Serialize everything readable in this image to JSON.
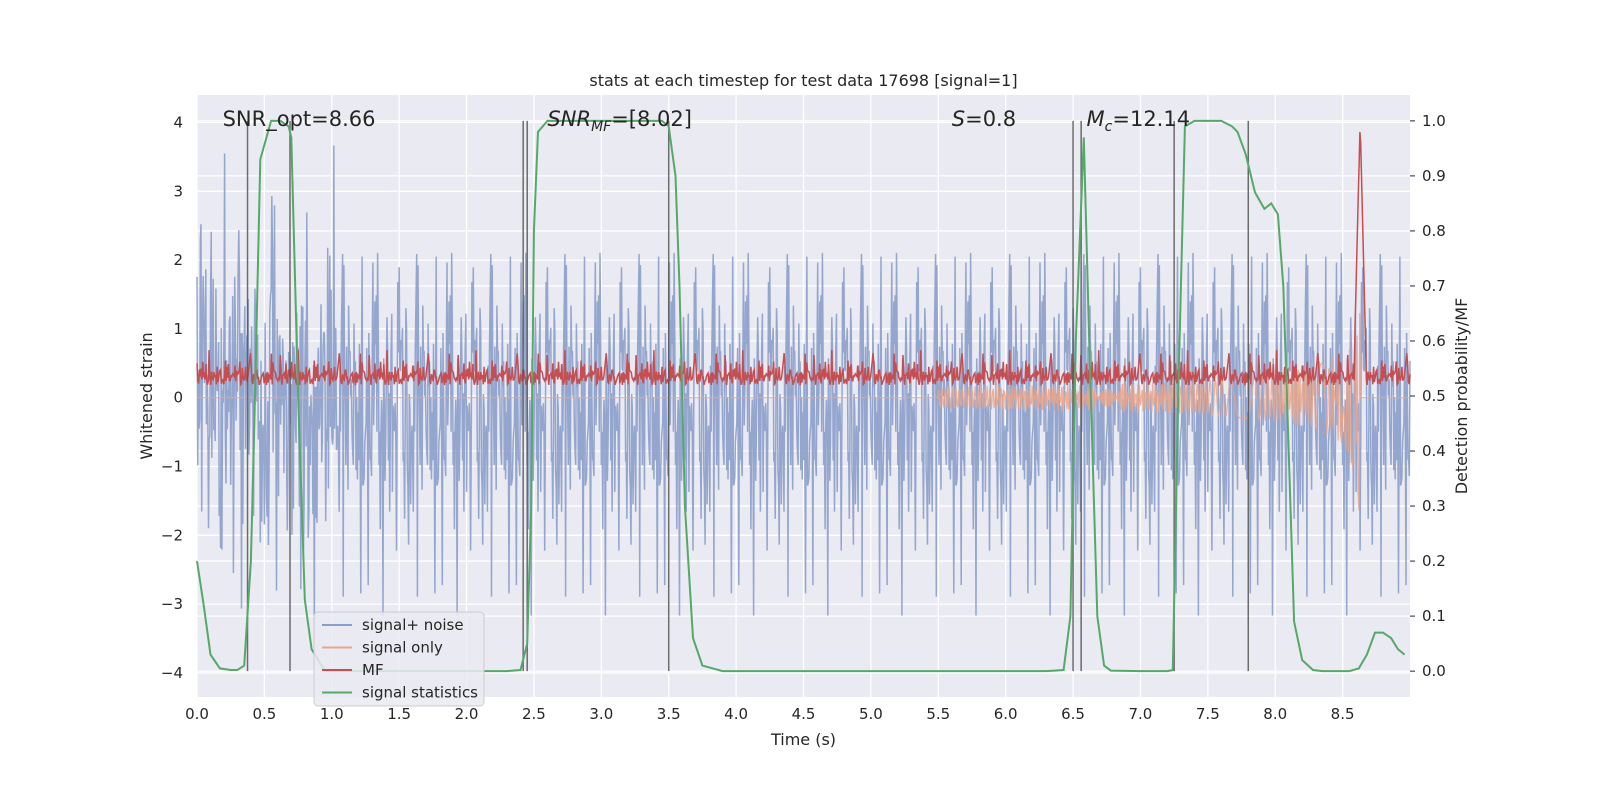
{
  "chart_data": {
    "type": "line",
    "title": "stats at each timestep for test data 17698 [signal=1]",
    "xlabel": "Time (s)",
    "ylabel": "Whitened strain",
    "y2label": "Detection probability/MF",
    "xlim": [
      0.0,
      9.0
    ],
    "ylim": [
      -4.35,
      4.4
    ],
    "y2lim": [
      -0.047,
      1.047
    ],
    "xticks": [
      "0.0",
      "0.5",
      "1.0",
      "1.5",
      "2.0",
      "2.5",
      "3.0",
      "3.5",
      "4.0",
      "4.5",
      "5.0",
      "5.5",
      "6.0",
      "6.5",
      "7.0",
      "7.5",
      "8.0",
      "8.5"
    ],
    "yticks": [
      "−4",
      "−3",
      "−2",
      "−1",
      "0",
      "1",
      "2",
      "3",
      "4"
    ],
    "y2ticks": [
      "0.0",
      "0.1",
      "0.2",
      "0.3",
      "0.4",
      "0.5",
      "0.6",
      "0.7",
      "0.8",
      "0.9",
      "1.0"
    ],
    "grid": true,
    "legend_position": "lower-left",
    "annotations": [
      {
        "label": "SNR_opt=8.66",
        "x": 0.19,
        "y": 4.05
      },
      {
        "label_main": "SNR",
        "label_sub": "MF",
        "label_rest": "=[8.02]",
        "x": 2.6,
        "y": 4.05
      },
      {
        "label_main": "S",
        "label_rest": "=0.8",
        "x": 5.6,
        "y": 4.05
      },
      {
        "label_main": "M",
        "label_sub": "c",
        "label_rest": "=12.14",
        "x": 6.6,
        "y": 4.05
      }
    ],
    "vertical_lines": [
      0.375,
      0.69,
      2.42,
      2.45,
      3.5,
      6.5,
      6.56,
      7.25,
      7.8
    ],
    "series": [
      {
        "name": "signal+ noise",
        "color": "#8c9fca",
        "description": "whitened strain with noise, amplitude roughly between -4 and 4.2 over 0–9 s"
      },
      {
        "name": "signal only",
        "color": "#e8a58c",
        "chirp_start": 5.5,
        "chirp_peak": 8.63,
        "chirp_peak_amplitude": 2.0
      },
      {
        "name": "MF",
        "color": "#c44e52",
        "baseline_range": [
          0.02,
          0.35
        ],
        "peak_time": 8.63,
        "peak_value": 1.0
      },
      {
        "name": "signal statistics",
        "color": "#55a868",
        "x": [
          0.0,
          0.05,
          0.1,
          0.17,
          0.25,
          0.3,
          0.35,
          0.4,
          0.43,
          0.47,
          0.55,
          0.62,
          0.68,
          0.7,
          0.75,
          0.8,
          0.85,
          0.95,
          1.2,
          1.5,
          1.8,
          2.1,
          2.3,
          2.4,
          2.45,
          2.48,
          2.5,
          2.53,
          2.6,
          2.8,
          3.0,
          3.2,
          3.45,
          3.5,
          3.55,
          3.58,
          3.62,
          3.68,
          3.75,
          3.9,
          4.5,
          5.0,
          5.5,
          6.0,
          6.3,
          6.43,
          6.48,
          6.52,
          6.58,
          6.62,
          6.68,
          6.73,
          6.78,
          7.0,
          7.2,
          7.24,
          7.28,
          7.33,
          7.4,
          7.5,
          7.6,
          7.68,
          7.72,
          7.78,
          7.85,
          7.92,
          7.97,
          8.02,
          8.06,
          8.1,
          8.14,
          8.2,
          8.28,
          8.35,
          8.45,
          8.55,
          8.62,
          8.68,
          8.74,
          8.8,
          8.86,
          8.91,
          8.96
        ],
        "y": [
          0.2,
          0.12,
          0.03,
          0.005,
          0.002,
          0.002,
          0.01,
          0.2,
          0.5,
          0.93,
          1.0,
          1.0,
          0.99,
          0.97,
          0.5,
          0.13,
          0.04,
          0.0,
          0.0,
          0.0,
          0.0,
          0.0,
          0.0,
          0.002,
          0.05,
          0.3,
          0.8,
          0.98,
          1.0,
          1.0,
          1.0,
          1.0,
          1.0,
          0.99,
          0.9,
          0.7,
          0.3,
          0.06,
          0.01,
          0.0,
          0.0,
          0.0,
          0.0,
          0.0,
          0.0,
          0.002,
          0.1,
          0.6,
          0.97,
          0.6,
          0.1,
          0.01,
          0.001,
          0.0,
          0.0,
          0.002,
          0.5,
          0.99,
          1.0,
          1.0,
          1.0,
          0.99,
          0.98,
          0.94,
          0.87,
          0.84,
          0.85,
          0.83,
          0.7,
          0.4,
          0.09,
          0.02,
          0.002,
          0.0,
          0.0,
          0.0,
          0.005,
          0.03,
          0.07,
          0.07,
          0.06,
          0.04,
          0.03
        ]
      }
    ]
  }
}
